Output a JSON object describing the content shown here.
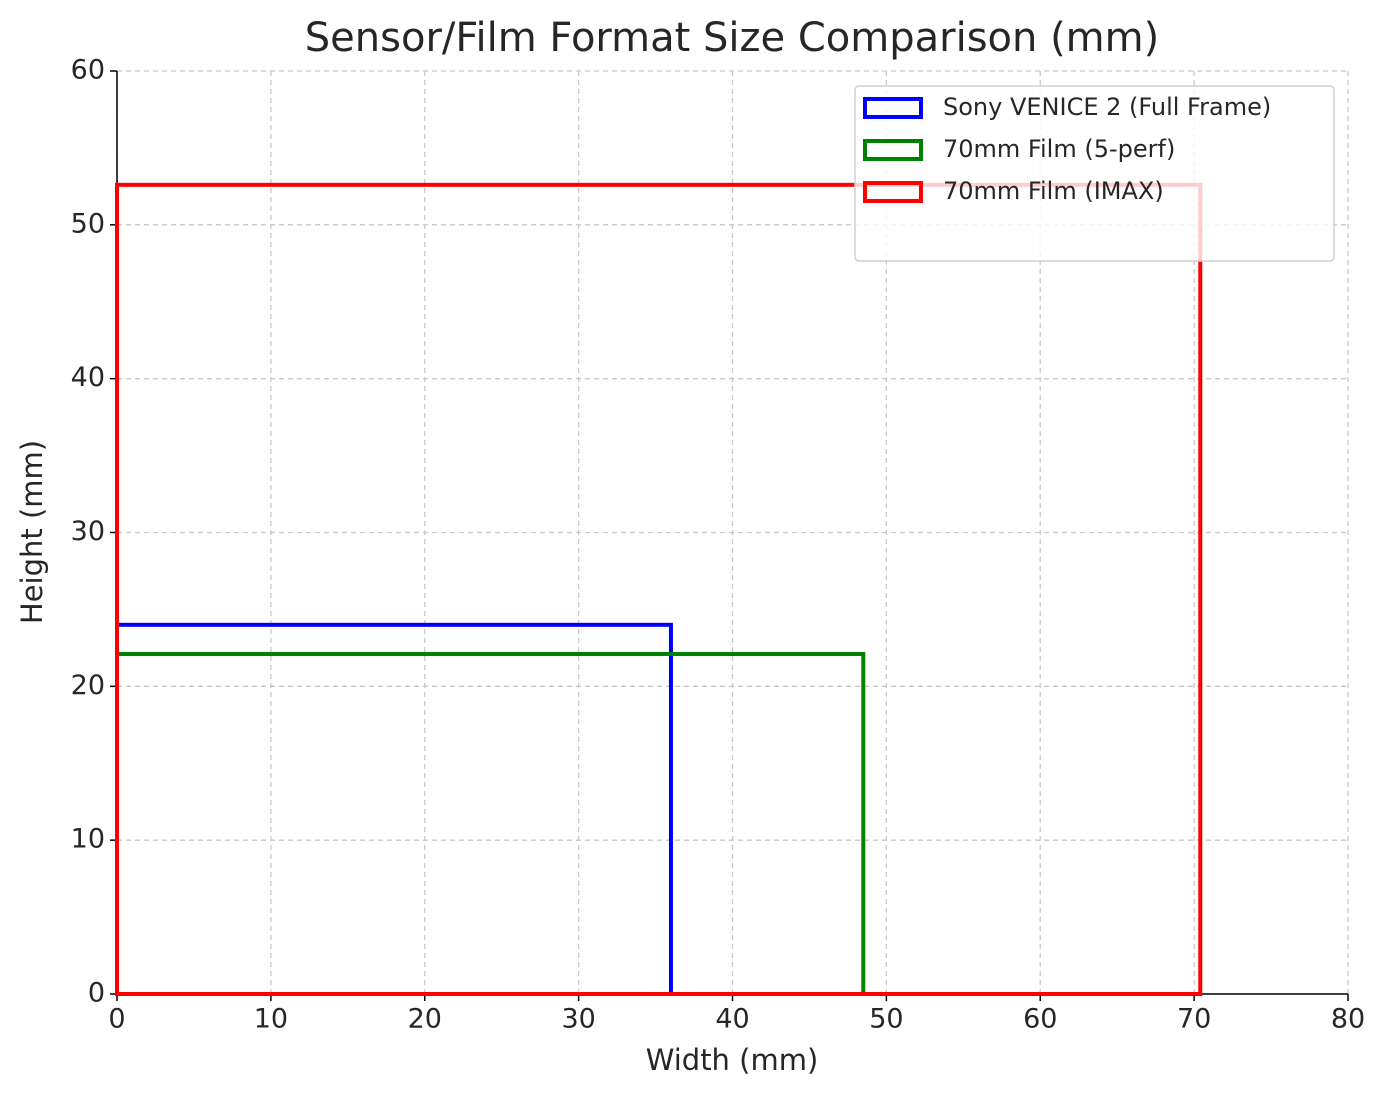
{
  "chart_data": {
    "type": "rectangle",
    "title": "Sensor/Film Format Size Comparison (mm)",
    "x_label": "Width (mm)",
    "y_label": "Height (mm)",
    "series": [
      {
        "name": "Sony VENICE 2 (Full Frame)",
        "color": "#0000ff",
        "width": 36,
        "height": 24
      },
      {
        "name": "70mm Film (5-perf)",
        "color": "#008000",
        "width": 48.5,
        "height": 22.1
      },
      {
        "name": "70mm Film (IMAX)",
        "color": "#ff0000",
        "width": 70.4,
        "height": 52.6
      }
    ],
    "xlim": [
      0,
      80
    ],
    "xticks": [
      0,
      10,
      20,
      30,
      40,
      50,
      60,
      70,
      80
    ],
    "ylim": [
      0,
      60
    ],
    "yticks": [
      0,
      10,
      20,
      30,
      40,
      50,
      60
    ],
    "grid": true,
    "legend": "upper right"
  }
}
